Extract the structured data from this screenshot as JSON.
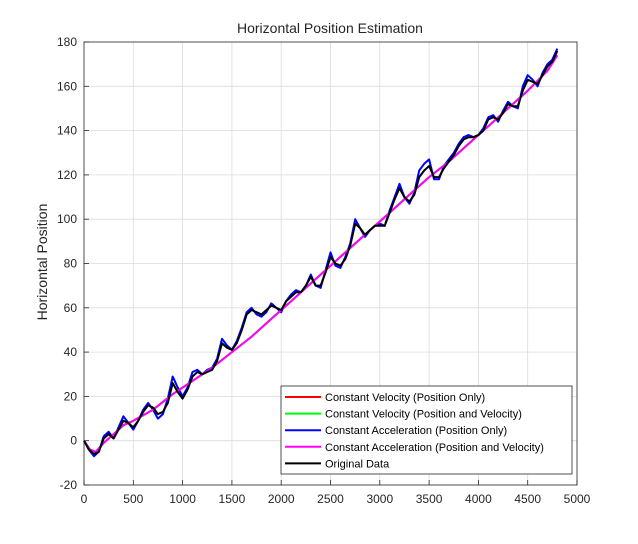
{
  "chart_data": {
    "type": "line",
    "title": "Horizontal Position Estimation",
    "xlabel": "",
    "ylabel": "Horizontal Position",
    "xlim": [
      0,
      5000
    ],
    "ylim": [
      -20,
      180
    ],
    "xticks": [
      0,
      500,
      1000,
      1500,
      2000,
      2500,
      3000,
      3500,
      4000,
      4500,
      5000
    ],
    "yticks": [
      -20,
      0,
      20,
      40,
      60,
      80,
      100,
      120,
      140,
      160,
      180
    ],
    "grid": true,
    "legend_position": "bottom-right",
    "series": [
      {
        "name": "Constant Velocity (Position Only)",
        "color": "#ff0000",
        "x": [
          0,
          60,
          120,
          200,
          300,
          400,
          500,
          700,
          900,
          1100,
          1300,
          1500,
          1700,
          1900,
          2100,
          2300,
          2500,
          2700,
          2900,
          3100,
          3300,
          3500,
          3700,
          3900,
          4100,
          4300,
          4500,
          4700,
          4800
        ],
        "y": [
          0,
          -4,
          -5,
          -1,
          3,
          7,
          9,
          14,
          21,
          27,
          33,
          40,
          47,
          55,
          63,
          71,
          79,
          87,
          95,
          103,
          111,
          119,
          126,
          134,
          142,
          150,
          158,
          167,
          174
        ]
      },
      {
        "name": "Constant Velocity (Position and Velocity)",
        "color": "#00ff00",
        "x": [
          0,
          60,
          120,
          200,
          300,
          400,
          500,
          700,
          900,
          1100,
          1300,
          1500,
          1700,
          1900,
          2100,
          2300,
          2500,
          2700,
          2900,
          3100,
          3300,
          3500,
          3700,
          3900,
          4100,
          4300,
          4500,
          4700,
          4800
        ],
        "y": [
          0,
          -4,
          -5,
          -1,
          3,
          7,
          9,
          14,
          21,
          27,
          33,
          40,
          47,
          55,
          63,
          71,
          79,
          87,
          95,
          103,
          111,
          119,
          126,
          134,
          142,
          150,
          158,
          167,
          174
        ]
      },
      {
        "name": "Constant Acceleration (Position Only)",
        "color": "#0000ff",
        "x": [
          0,
          50,
          100,
          150,
          200,
          250,
          300,
          350,
          400,
          450,
          500,
          550,
          600,
          650,
          700,
          750,
          800,
          850,
          900,
          950,
          1000,
          1050,
          1100,
          1150,
          1200,
          1250,
          1300,
          1350,
          1400,
          1450,
          1500,
          1550,
          1600,
          1650,
          1700,
          1750,
          1800,
          1850,
          1900,
          1950,
          2000,
          2050,
          2100,
          2150,
          2200,
          2250,
          2300,
          2350,
          2400,
          2450,
          2500,
          2550,
          2600,
          2650,
          2700,
          2750,
          2800,
          2850,
          2900,
          2950,
          3000,
          3050,
          3100,
          3150,
          3200,
          3250,
          3300,
          3350,
          3400,
          3450,
          3500,
          3550,
          3600,
          3650,
          3700,
          3750,
          3800,
          3850,
          3900,
          3950,
          4000,
          4050,
          4100,
          4150,
          4200,
          4250,
          4300,
          4350,
          4400,
          4450,
          4500,
          4550,
          4600,
          4650,
          4700,
          4750,
          4800
        ],
        "y": [
          0,
          -4,
          -7,
          -5,
          2,
          4,
          1,
          6,
          11,
          8,
          5,
          9,
          14,
          17,
          14,
          10,
          12,
          19,
          29,
          24,
          20,
          24,
          31,
          32,
          30,
          32,
          33,
          37,
          46,
          43,
          41,
          45,
          51,
          58,
          60,
          57,
          56,
          58,
          62,
          60,
          58,
          63,
          66,
          68,
          67,
          70,
          75,
          70,
          69,
          77,
          85,
          79,
          78,
          83,
          89,
          100,
          96,
          92,
          95,
          97,
          98,
          97,
          104,
          110,
          116,
          110,
          107,
          112,
          122,
          125,
          127,
          118,
          118,
          124,
          127,
          130,
          134,
          137,
          138,
          137,
          138,
          141,
          146,
          147,
          144,
          149,
          153,
          151,
          150,
          160,
          165,
          163,
          160,
          166,
          170,
          172,
          177
        ]
      },
      {
        "name": "Constant Acceleration (Position and Velocity)",
        "color": "#ff00ff",
        "x": [
          0,
          60,
          120,
          200,
          300,
          400,
          500,
          700,
          900,
          1100,
          1300,
          1500,
          1700,
          1900,
          2100,
          2300,
          2500,
          2700,
          2900,
          3100,
          3300,
          3500,
          3700,
          3900,
          4100,
          4300,
          4500,
          4700,
          4800
        ],
        "y": [
          0,
          -4,
          -5,
          -1,
          3,
          7,
          9,
          14,
          21,
          27,
          33,
          40,
          47,
          55,
          63,
          71,
          79,
          87,
          95,
          103,
          111,
          119,
          126,
          134,
          142,
          150,
          158,
          167,
          174
        ]
      },
      {
        "name": "Original Data",
        "color": "#000000",
        "x": [
          0,
          50,
          100,
          150,
          200,
          250,
          300,
          350,
          400,
          450,
          500,
          550,
          600,
          650,
          700,
          750,
          800,
          850,
          900,
          950,
          1000,
          1050,
          1100,
          1150,
          1200,
          1250,
          1300,
          1350,
          1400,
          1450,
          1500,
          1550,
          1600,
          1650,
          1700,
          1750,
          1800,
          1850,
          1900,
          1950,
          2000,
          2050,
          2100,
          2150,
          2200,
          2250,
          2300,
          2350,
          2400,
          2450,
          2500,
          2550,
          2600,
          2650,
          2700,
          2750,
          2800,
          2850,
          2900,
          2950,
          3000,
          3050,
          3100,
          3150,
          3200,
          3250,
          3300,
          3350,
          3400,
          3450,
          3500,
          3550,
          3600,
          3650,
          3700,
          3750,
          3800,
          3850,
          3900,
          3950,
          4000,
          4050,
          4100,
          4150,
          4200,
          4250,
          4300,
          4350,
          4400,
          4450,
          4500,
          4550,
          4600,
          4650,
          4700,
          4750,
          4800
        ],
        "y": [
          0,
          -4,
          -6,
          -5,
          1,
          3,
          1,
          5,
          9,
          8,
          6,
          9,
          13,
          16,
          15,
          12,
          13,
          17,
          26,
          22,
          19,
          23,
          29,
          31,
          30,
          31,
          32,
          36,
          44,
          42,
          41,
          44,
          50,
          57,
          59,
          58,
          57,
          59,
          61,
          60,
          59,
          63,
          65,
          67,
          67,
          70,
          74,
          70,
          70,
          76,
          83,
          80,
          79,
          82,
          88,
          98,
          96,
          93,
          95,
          97,
          97,
          97,
          103,
          109,
          114,
          110,
          108,
          111,
          119,
          122,
          124,
          119,
          119,
          123,
          126,
          129,
          133,
          136,
          137,
          137,
          138,
          140,
          145,
          146,
          145,
          148,
          152,
          151,
          151,
          158,
          163,
          162,
          161,
          165,
          169,
          171,
          176
        ]
      }
    ]
  }
}
